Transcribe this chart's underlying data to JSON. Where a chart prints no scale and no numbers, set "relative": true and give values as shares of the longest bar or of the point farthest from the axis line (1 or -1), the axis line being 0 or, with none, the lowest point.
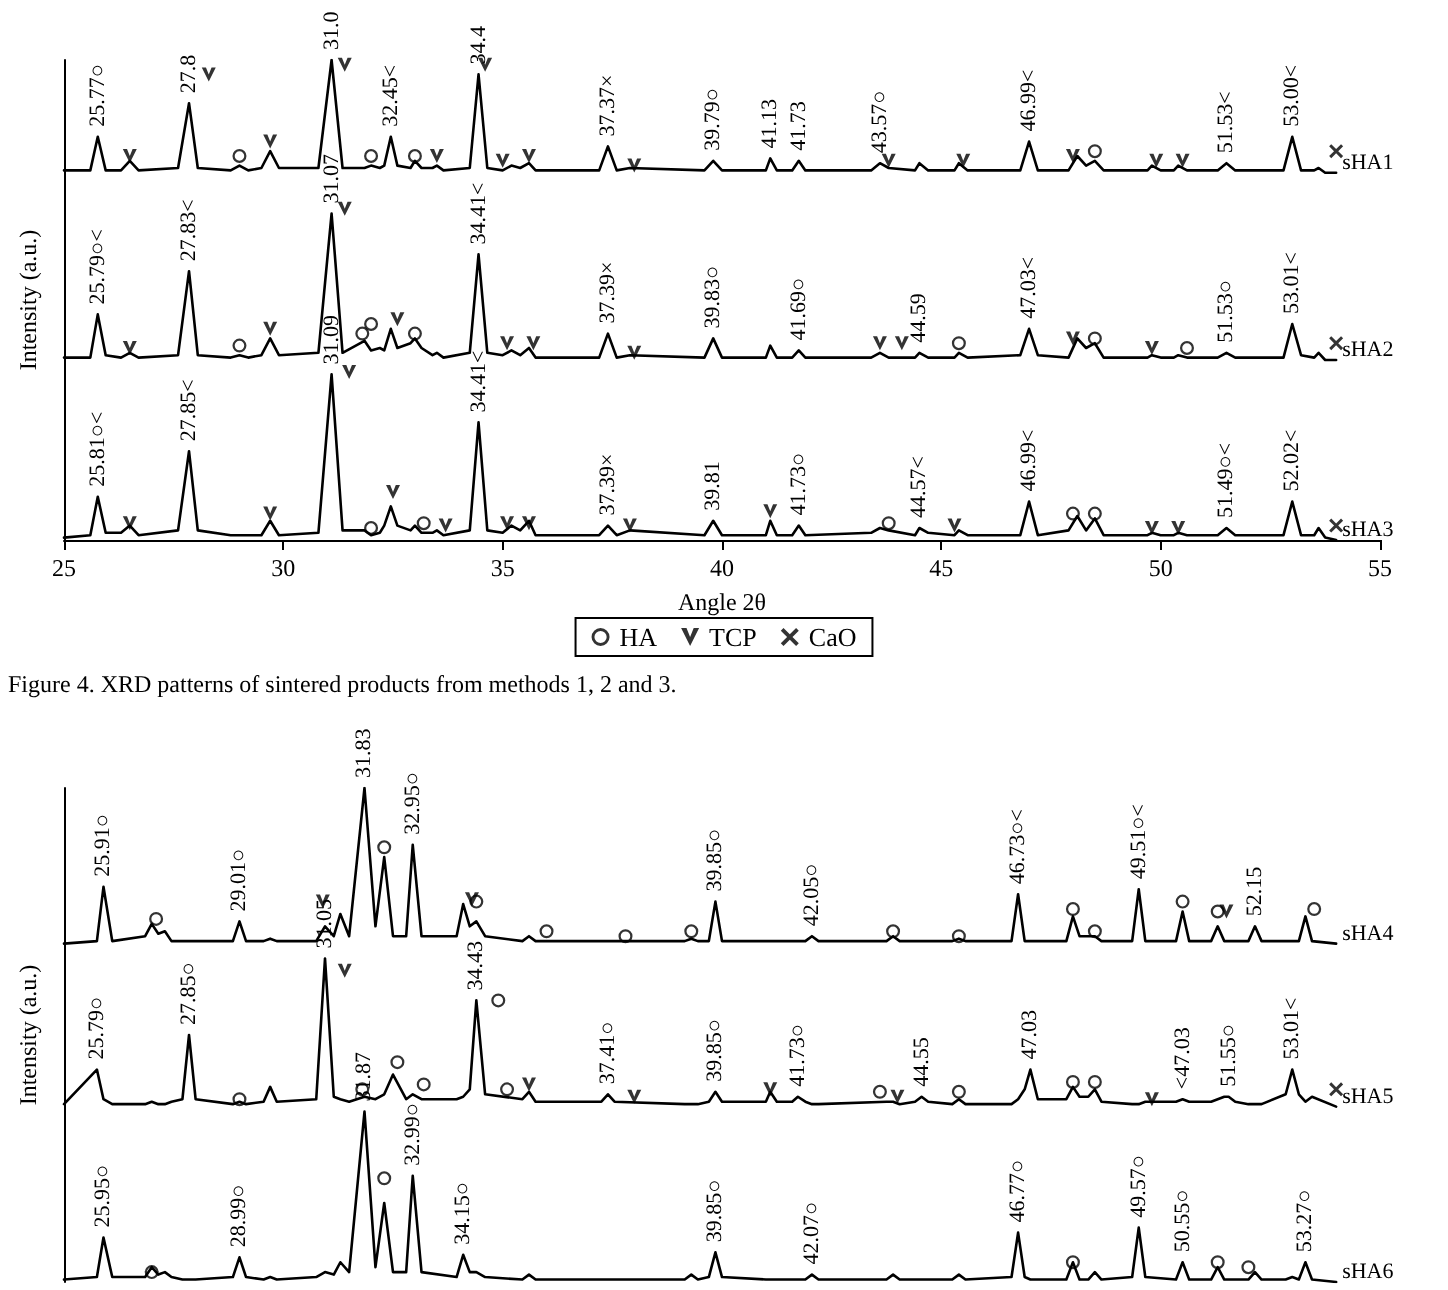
{
  "chart_data": [
    {
      "type": "line",
      "xlabel": "Angle 2θ",
      "ylabel": "Intensity (a.u.)",
      "relative": true,
      "xlim": [
        25,
        55
      ],
      "xticks": [
        25,
        30,
        35,
        40,
        45,
        50,
        55
      ],
      "tick_labels": "x",
      "grid": false,
      "legend": "bottom",
      "line_style": "solid",
      "x": [
        25,
        25.6,
        25.77,
        25.95,
        26.3,
        26.5,
        26.7,
        27.6,
        27.85,
        28.05,
        28.8,
        29.0,
        29.2,
        29.5,
        29.7,
        29.9,
        30.8,
        31.1,
        31.35,
        31.85,
        32.0,
        32.2,
        32.3,
        32.45,
        32.6,
        32.9,
        33.0,
        33.15,
        33.4,
        33.5,
        33.65,
        34.25,
        34.45,
        34.65,
        35.0,
        35.2,
        35.4,
        35.6,
        35.75,
        37.2,
        37.4,
        37.6,
        37.9,
        39.6,
        39.8,
        40.0,
        41.0,
        41.1,
        41.25,
        41.6,
        41.75,
        41.9,
        43.4,
        43.6,
        43.8,
        44.4,
        44.5,
        44.7,
        45.3,
        45.4,
        45.6,
        46.8,
        47.0,
        47.2,
        47.9,
        48.1,
        48.3,
        48.5,
        48.7,
        49.7,
        49.8,
        50.0,
        50.3,
        50.4,
        50.6,
        51.3,
        51.5,
        51.7,
        52.8,
        53.0,
        53.2,
        53.5,
        53.6,
        53.75,
        54
      ],
      "series": [
        {
          "name": "sHA1",
          "color": "#000000",
          "values": [
            0.77,
            0.77,
            0.84,
            0.77,
            0.77,
            0.79,
            0.77,
            0.775,
            0.91,
            0.775,
            0.77,
            0.78,
            0.77,
            0.775,
            0.81,
            0.775,
            0.775,
            1.0,
            0.775,
            0.775,
            0.78,
            0.775,
            0.78,
            0.84,
            0.78,
            0.775,
            0.79,
            0.775,
            0.775,
            0.78,
            0.77,
            0.775,
            0.97,
            0.775,
            0.77,
            0.78,
            0.775,
            0.785,
            0.77,
            0.77,
            0.82,
            0.77,
            0.775,
            0.77,
            0.79,
            0.77,
            0.77,
            0.795,
            0.77,
            0.77,
            0.79,
            0.77,
            0.77,
            0.785,
            0.775,
            0.77,
            0.785,
            0.77,
            0.77,
            0.785,
            0.77,
            0.77,
            0.83,
            0.77,
            0.77,
            0.8,
            0.78,
            0.79,
            0.77,
            0.77,
            0.78,
            0.77,
            0.77,
            0.78,
            0.77,
            0.77,
            0.785,
            0.77,
            0.77,
            0.84,
            0.77,
            0.77,
            0.775,
            0.765,
            0.765
          ]
        },
        {
          "name": "sHA2",
          "color": "#000000",
          "values": [
            0.38,
            0.38,
            0.47,
            0.385,
            0.38,
            0.39,
            0.38,
            0.385,
            0.56,
            0.385,
            0.38,
            0.385,
            0.38,
            0.385,
            0.42,
            0.385,
            0.39,
            0.68,
            0.39,
            0.415,
            0.395,
            0.4,
            0.395,
            0.44,
            0.4,
            0.41,
            0.42,
            0.4,
            0.385,
            0.39,
            0.38,
            0.39,
            0.595,
            0.39,
            0.385,
            0.395,
            0.385,
            0.4,
            0.38,
            0.38,
            0.43,
            0.38,
            0.385,
            0.38,
            0.42,
            0.38,
            0.38,
            0.405,
            0.38,
            0.38,
            0.395,
            0.38,
            0.38,
            0.39,
            0.38,
            0.38,
            0.39,
            0.38,
            0.38,
            0.39,
            0.38,
            0.385,
            0.44,
            0.385,
            0.38,
            0.42,
            0.4,
            0.41,
            0.38,
            0.38,
            0.385,
            0.38,
            0.38,
            0.385,
            0.38,
            0.38,
            0.39,
            0.38,
            0.38,
            0.45,
            0.385,
            0.38,
            0.39,
            0.375,
            0.375
          ]
        },
        {
          "name": "sHA3",
          "color": "#000000",
          "values": [
            0.005,
            0.01,
            0.09,
            0.015,
            0.015,
            0.03,
            0.01,
            0.02,
            0.185,
            0.02,
            0.01,
            0.01,
            0.01,
            0.01,
            0.04,
            0.01,
            0.015,
            0.345,
            0.02,
            0.02,
            0.01,
            0.015,
            0.03,
            0.07,
            0.03,
            0.02,
            0.03,
            0.015,
            0.015,
            0.02,
            0.01,
            0.02,
            0.245,
            0.02,
            0.015,
            0.03,
            0.02,
            0.04,
            0.01,
            0.01,
            0.03,
            0.01,
            0.02,
            0.01,
            0.04,
            0.01,
            0.01,
            0.04,
            0.01,
            0.01,
            0.03,
            0.01,
            0.015,
            0.025,
            0.02,
            0.01,
            0.025,
            0.015,
            0.01,
            0.02,
            0.01,
            0.01,
            0.08,
            0.01,
            0.02,
            0.05,
            0.02,
            0.045,
            0.01,
            0.01,
            0.015,
            0.01,
            0.01,
            0.015,
            0.01,
            0.01,
            0.025,
            0.01,
            0.01,
            0.08,
            0.01,
            0.01,
            0.025,
            0.005,
            0.0
          ]
        },
        {
          "name": "HA",
          "type": "scatter",
          "marker": "circle",
          "color": "#000000",
          "x": [
            29.0,
            32.0,
            33.0,
            48.5,
            29.0,
            31.8,
            32.0,
            33.0,
            45.4,
            48.5,
            50.6,
            32.0,
            33.2,
            43.8,
            48.0,
            48.5
          ],
          "values": [
            0.8,
            0.8,
            0.8,
            0.81,
            0.405,
            0.43,
            0.45,
            0.43,
            0.41,
            0.42,
            0.4,
            0.025,
            0.035,
            0.035,
            0.055,
            0.055
          ]
        },
        {
          "name": "TCP",
          "type": "scatter",
          "marker": "triangle",
          "color": "#000000",
          "x": [
            28.3,
            26.5,
            29.7,
            31.4,
            34.6,
            33.5,
            35.0,
            35.6,
            38.0,
            43.8,
            45.5,
            48.0,
            49.9,
            50.5,
            26.5,
            29.7,
            31.4,
            32.6,
            35.1,
            35.7,
            38.0,
            43.6,
            44.1,
            48.0,
            49.8,
            26.5,
            29.7,
            31.5,
            32.5,
            33.7,
            35.1,
            35.6,
            37.9,
            41.1,
            45.3,
            49.8,
            50.4
          ],
          "values": [
            0.97,
            0.8,
            0.83,
            0.99,
            0.99,
            0.8,
            0.79,
            0.8,
            0.78,
            0.79,
            0.79,
            0.8,
            0.79,
            0.79,
            0.4,
            0.44,
            0.69,
            0.46,
            0.41,
            0.41,
            0.39,
            0.41,
            0.41,
            0.42,
            0.4,
            0.035,
            0.055,
            0.35,
            0.1,
            0.03,
            0.035,
            0.035,
            0.03,
            0.06,
            0.03,
            0.025,
            0.025
          ]
        },
        {
          "name": "CaO",
          "type": "scatter",
          "marker": "cross",
          "color": "#000000",
          "x": [
            54.0,
            54.0,
            54.0
          ],
          "values": [
            0.81,
            0.41,
            0.03
          ]
        }
      ],
      "annotations": [
        {
          "text": "25.77○",
          "x": 25.77,
          "y": 0.84
        },
        {
          "text": "27.8",
          "x": 27.85,
          "y": 0.91
        },
        {
          "text": "31.0",
          "x": 31.1,
          "y": 1.0
        },
        {
          "text": "32.45<",
          "x": 32.45,
          "y": 0.84
        },
        {
          "text": "34.4",
          "x": 34.45,
          "y": 0.97
        },
        {
          "text": "37.37×",
          "x": 37.4,
          "y": 0.82
        },
        {
          "text": "39.79○",
          "x": 39.8,
          "y": 0.79
        },
        {
          "text": "41.13",
          "x": 41.1,
          "y": 0.795
        },
        {
          "text": "41.73",
          "x": 41.75,
          "y": 0.79
        },
        {
          "text": "43.57○",
          "x": 43.6,
          "y": 0.785
        },
        {
          "text": "46.99<",
          "x": 47.0,
          "y": 0.83
        },
        {
          "text": "51.53<",
          "x": 51.5,
          "y": 0.785
        },
        {
          "text": "53.00<",
          "x": 53.0,
          "y": 0.84
        },
        {
          "text": "25.79○<",
          "x": 25.77,
          "y": 0.47
        },
        {
          "text": "27.83<",
          "x": 27.85,
          "y": 0.56
        },
        {
          "text": "31.07",
          "x": 31.1,
          "y": 0.68
        },
        {
          "text": "34.41<",
          "x": 34.45,
          "y": 0.595
        },
        {
          "text": "37.39×",
          "x": 37.4,
          "y": 0.43
        },
        {
          "text": "39.83○",
          "x": 39.8,
          "y": 0.42
        },
        {
          "text": "41.69○",
          "x": 41.75,
          "y": 0.395
        },
        {
          "text": "44.59",
          "x": 44.5,
          "y": 0.39
        },
        {
          "text": "47.03<",
          "x": 47.0,
          "y": 0.44
        },
        {
          "text": "51.53○",
          "x": 51.5,
          "y": 0.39
        },
        {
          "text": "53.01<",
          "x": 53.0,
          "y": 0.45
        },
        {
          "text": "25.81○<",
          "x": 25.77,
          "y": 0.09
        },
        {
          "text": "27.85<",
          "x": 27.85,
          "y": 0.185
        },
        {
          "text": "31.09",
          "x": 31.1,
          "y": 0.345
        },
        {
          "text": "34.41<",
          "x": 34.45,
          "y": 0.245
        },
        {
          "text": "37.39×",
          "x": 37.4,
          "y": 0.03
        },
        {
          "text": "39.81",
          "x": 39.8,
          "y": 0.04
        },
        {
          "text": "41.73○",
          "x": 41.75,
          "y": 0.03
        },
        {
          "text": "44.57<",
          "x": 44.5,
          "y": 0.025
        },
        {
          "text": "46.99<",
          "x": 47.0,
          "y": 0.08
        },
        {
          "text": "51.49○<",
          "x": 51.5,
          "y": 0.025
        },
        {
          "text": "52.02<",
          "x": 53.0,
          "y": 0.08
        },
        "Figure 4. XRD patterns of sintered products from methods 1, 2 and 3."
      ]
    },
    {
      "type": "line",
      "ylabel": "Intensity (a.u.)",
      "relative": true,
      "xlim": [
        25,
        55
      ],
      "tick_labels": false,
      "grid": false,
      "line_style": "solid",
      "x": [
        25,
        25.75,
        25.9,
        26.1,
        26.85,
        27.0,
        27.15,
        27.3,
        27.45,
        27.7,
        27.85,
        28.0,
        28.85,
        29.0,
        29.15,
        29.55,
        29.7,
        29.85,
        30.75,
        30.95,
        31.15,
        31.3,
        31.5,
        31.85,
        32.1,
        32.3,
        32.5,
        32.8,
        32.95,
        33.15,
        33.95,
        34.1,
        34.25,
        34.4,
        34.6,
        35.45,
        35.6,
        35.75,
        37.25,
        37.4,
        37.55,
        39.15,
        39.3,
        39.45,
        39.7,
        39.85,
        40.0,
        41.0,
        41.1,
        41.25,
        41.6,
        41.73,
        41.9,
        42.05,
        42.2,
        43.75,
        43.9,
        44.05,
        44.4,
        44.55,
        44.7,
        45.25,
        45.4,
        45.55,
        46.6,
        46.75,
        46.9,
        47.03,
        47.2,
        47.85,
        48.0,
        48.15,
        48.35,
        48.5,
        48.65,
        49.35,
        49.5,
        49.65,
        50.35,
        50.5,
        50.65,
        51.15,
        51.3,
        51.45,
        51.55,
        51.7,
        52.0,
        52.15,
        52.3,
        52.85,
        53.0,
        53.15,
        53.3,
        53.45,
        54
      ],
      "series": [
        {
          "name": "sHA4",
          "color": "#000000",
          "values": [
            0.685,
            0.69,
            0.8,
            0.69,
            0.7,
            0.725,
            0.705,
            0.71,
            0.69,
            0.69,
            0.69,
            0.69,
            0.69,
            0.73,
            0.69,
            0.69,
            0.695,
            0.69,
            0.69,
            0.72,
            0.7,
            0.745,
            0.7,
            1.0,
            0.72,
            0.86,
            0.7,
            0.7,
            0.885,
            0.7,
            0.7,
            0.765,
            0.72,
            0.73,
            0.7,
            0.69,
            0.7,
            0.69,
            0.69,
            0.69,
            0.69,
            0.69,
            0.695,
            0.69,
            0.69,
            0.77,
            0.69,
            0.69,
            0.69,
            0.69,
            0.69,
            0.69,
            0.69,
            0.7,
            0.69,
            0.69,
            0.7,
            0.69,
            0.69,
            0.69,
            0.69,
            0.69,
            0.695,
            0.69,
            0.69,
            0.785,
            0.69,
            0.69,
            0.69,
            0.69,
            0.74,
            0.7,
            0.7,
            0.7,
            0.69,
            0.69,
            0.795,
            0.69,
            0.69,
            0.75,
            0.69,
            0.69,
            0.72,
            0.69,
            0.69,
            0.69,
            0.69,
            0.72,
            0.69,
            0.69,
            0.69,
            0.69,
            0.74,
            0.69,
            0.685
          ]
        },
        {
          "name": "sHA5",
          "color": "#000000",
          "values": [
            0.36,
            0.43,
            0.37,
            0.36,
            0.36,
            0.365,
            0.36,
            0.36,
            0.365,
            0.37,
            0.5,
            0.37,
            0.36,
            0.365,
            0.36,
            0.365,
            0.395,
            0.365,
            0.37,
            0.655,
            0.375,
            0.37,
            0.365,
            0.375,
            0.37,
            0.38,
            0.42,
            0.37,
            0.38,
            0.37,
            0.37,
            0.375,
            0.39,
            0.57,
            0.38,
            0.37,
            0.385,
            0.365,
            0.365,
            0.38,
            0.365,
            0.36,
            0.36,
            0.36,
            0.365,
            0.385,
            0.365,
            0.365,
            0.385,
            0.365,
            0.365,
            0.375,
            0.365,
            0.36,
            0.36,
            0.365,
            0.365,
            0.36,
            0.365,
            0.375,
            0.365,
            0.36,
            0.37,
            0.36,
            0.36,
            0.37,
            0.39,
            0.43,
            0.37,
            0.37,
            0.395,
            0.375,
            0.375,
            0.39,
            0.365,
            0.36,
            0.36,
            0.365,
            0.365,
            0.37,
            0.365,
            0.365,
            0.37,
            0.375,
            0.375,
            0.365,
            0.36,
            0.36,
            0.36,
            0.38,
            0.43,
            0.38,
            0.365,
            0.375,
            0.355
          ]
        },
        {
          "name": "sHA6",
          "color": "#000000",
          "values": [
            0.005,
            0.01,
            0.09,
            0.01,
            0.01,
            0.03,
            0.015,
            0.02,
            0.01,
            0.005,
            0.005,
            0.005,
            0.01,
            0.05,
            0.01,
            0.005,
            0.01,
            0.005,
            0.01,
            0.02,
            0.015,
            0.04,
            0.02,
            0.345,
            0.03,
            0.16,
            0.02,
            0.02,
            0.215,
            0.02,
            0.01,
            0.055,
            0.02,
            0.02,
            0.01,
            0.005,
            0.015,
            0.005,
            0.005,
            0.005,
            0.005,
            0.005,
            0.015,
            0.005,
            0.01,
            0.06,
            0.01,
            0.005,
            0.005,
            0.005,
            0.005,
            0.005,
            0.005,
            0.015,
            0.005,
            0.005,
            0.015,
            0.005,
            0.005,
            0.005,
            0.005,
            0.005,
            0.015,
            0.005,
            0.01,
            0.1,
            0.01,
            0.005,
            0.005,
            0.005,
            0.04,
            0.005,
            0.005,
            0.02,
            0.005,
            0.01,
            0.11,
            0.01,
            0.005,
            0.04,
            0.005,
            0.005,
            0.03,
            0.005,
            0.005,
            0.005,
            0.005,
            0.02,
            0.005,
            0.005,
            0.01,
            0.005,
            0.04,
            0.005,
            0.0
          ]
        },
        {
          "type": "scatter",
          "marker": "circle",
          "color": "#000000",
          "x": [
            27.1,
            32.3,
            34.4,
            36.0,
            37.8,
            39.3,
            43.9,
            45.4,
            48.0,
            48.5,
            50.5,
            51.3,
            53.5,
            29.0,
            31.8,
            32.6,
            33.2,
            35.1,
            43.6,
            45.4,
            48.0,
            48.5,
            34.9,
            32.3,
            27.0,
            48.0,
            51.3,
            52.0
          ],
          "values": [
            0.735,
            0.88,
            0.77,
            0.71,
            0.7,
            0.71,
            0.71,
            0.7,
            0.755,
            0.71,
            0.77,
            0.75,
            0.755,
            0.37,
            0.39,
            0.445,
            0.4,
            0.39,
            0.385,
            0.385,
            0.405,
            0.405,
            0.57,
            0.21,
            0.02,
            0.04,
            0.04,
            0.03
          ]
        },
        {
          "type": "scatter",
          "marker": "triangle",
          "color": "#000000",
          "x": [
            30.9,
            34.3,
            51.5,
            31.4,
            35.6,
            38.0,
            41.1,
            44.0,
            49.8
          ],
          "values": [
            0.77,
            0.775,
            0.75,
            0.63,
            0.4,
            0.375,
            0.39,
            0.375,
            0.37
          ]
        },
        {
          "type": "scatter",
          "marker": "cross",
          "color": "#000000",
          "x": [
            54.0
          ],
          "values": [
            0.39
          ]
        }
      ],
      "annotations": [
        {
          "text": "25.91○",
          "x": 25.9,
          "y": 0.8
        },
        {
          "text": "29.01○",
          "x": 29.0,
          "y": 0.73
        },
        {
          "text": "31.83",
          "x": 31.85,
          "y": 1.0
        },
        {
          "text": "32.95○",
          "x": 32.95,
          "y": 0.885
        },
        {
          "text": "39.85○",
          "x": 39.85,
          "y": 0.77
        },
        {
          "text": "42.05○",
          "x": 42.05,
          "y": 0.7
        },
        {
          "text": "46.73○<",
          "x": 46.75,
          "y": 0.785
        },
        {
          "text": "49.51○<",
          "x": 49.5,
          "y": 0.795
        },
        {
          "text": "52.15",
          "x": 52.15,
          "y": 0.72
        },
        {
          "text": "25.79○",
          "x": 25.75,
          "y": 0.43
        },
        {
          "text": "27.85○",
          "x": 27.85,
          "y": 0.5
        },
        {
          "text": "31.05",
          "x": 30.95,
          "y": 0.655
        },
        {
          "text": "34.43",
          "x": 34.4,
          "y": 0.57
        },
        {
          "text": "37.41○",
          "x": 37.4,
          "y": 0.38
        },
        {
          "text": "39.85○",
          "x": 39.85,
          "y": 0.385
        },
        {
          "text": "41.73○",
          "x": 41.73,
          "y": 0.375
        },
        {
          "text": "44.55",
          "x": 44.55,
          "y": 0.375
        },
        {
          "text": "47.03",
          "x": 47.03,
          "y": 0.43
        },
        {
          "text": "<47.03",
          "x": 50.5,
          "y": 0.37
        },
        {
          "text": "51.55○",
          "x": 51.55,
          "y": 0.375
        },
        {
          "text": "53.01<",
          "x": 53.0,
          "y": 0.43
        },
        {
          "text": "25.95○",
          "x": 25.9,
          "y": 0.09
        },
        {
          "text": "28.99○",
          "x": 29.0,
          "y": 0.05
        },
        {
          "text": "31.87",
          "x": 31.85,
          "y": 0.345
        },
        {
          "text": "32.99○",
          "x": 32.95,
          "y": 0.215
        },
        {
          "text": "34.15○",
          "x": 34.1,
          "y": 0.055
        },
        {
          "text": "39.85○",
          "x": 39.85,
          "y": 0.06
        },
        {
          "text": "42.07○",
          "x": 42.05,
          "y": 0.015
        },
        {
          "text": "46.77○",
          "x": 46.75,
          "y": 0.1
        },
        {
          "text": "49.57○",
          "x": 49.5,
          "y": 0.11
        },
        {
          "text": "50.55○",
          "x": 50.5,
          "y": 0.04
        },
        {
          "text": "53.27○",
          "x": 53.3,
          "y": 0.04
        }
      ]
    }
  ]
}
